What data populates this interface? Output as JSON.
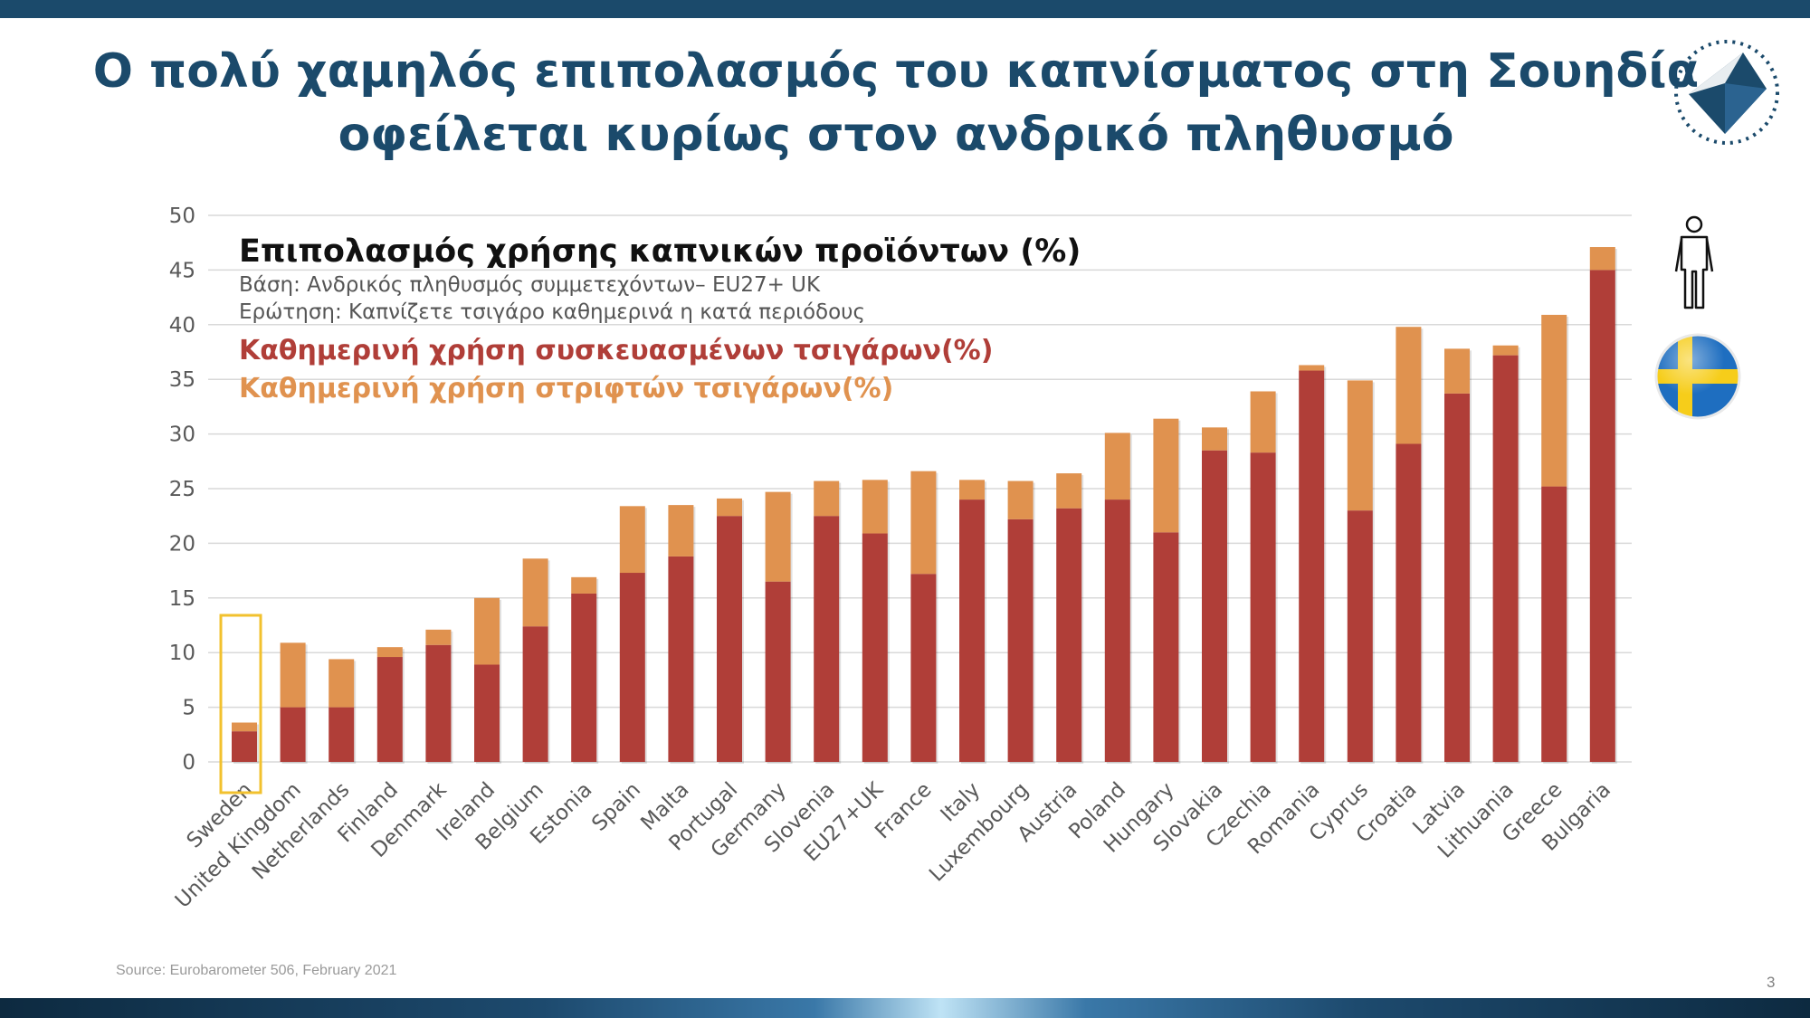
{
  "slide": {
    "title_line1": "Ο πολύ χαμηλός επιπολασμός του καπνίσματος στη Σουηδία",
    "title_line2": "οφείλεται κυρίως στον ανδρικό πληθυσμό",
    "source": "Source: Eurobarometer 506, February 2021",
    "page_number": "3",
    "icons": [
      "logo-icon",
      "person-icon",
      "sweden-flag-icon"
    ]
  },
  "colors": {
    "header_bar": "#1b4a6b",
    "title": "#1b4a6b",
    "daily_packaged": "#b03e38",
    "daily_rolled": "#e0924f",
    "highlight": "#f2c12e"
  },
  "chart_data": {
    "type": "bar",
    "stacked": true,
    "title": "Επιπολασμός χρήσης καπνικών προϊόντων (%)",
    "subtitle_base": "Βάση: Ανδρικός πληθυσμός συμμετεχόντων– EU27+ UK",
    "subtitle_question": "Ερώτηση: Καπνίζετε τσιγάρο καθημερινά η κατά περιόδους",
    "ylim": [
      0,
      50
    ],
    "yticks": [
      0,
      5,
      10,
      15,
      20,
      25,
      30,
      35,
      40,
      45,
      50
    ],
    "grid": true,
    "highlighted_category": "Sweden",
    "categories": [
      "Sweden",
      "United Kingdom",
      "Netherlands",
      "Finland",
      "Denmark",
      "Ireland",
      "Belgium",
      "Estonia",
      "Spain",
      "Malta",
      "Portugal",
      "Germany",
      "Slovenia",
      "EU27+UK",
      "France",
      "Italy",
      "Luxembourg",
      "Austria",
      "Poland",
      "Hungary",
      "Slovakia",
      "Czechia",
      "Romania",
      "Cyprus",
      "Croatia",
      "Latvia",
      "Lithuania",
      "Greece",
      "Bulgaria"
    ],
    "series": [
      {
        "name": "Καθημερινή χρήση συσκευασμένων τσιγάρων(%)",
        "color": "#b03e38",
        "values": [
          2.8,
          5.0,
          5.0,
          9.6,
          10.7,
          8.9,
          12.4,
          15.4,
          17.3,
          18.8,
          22.5,
          16.5,
          22.5,
          20.9,
          17.2,
          24.0,
          22.2,
          23.2,
          24.0,
          21.0,
          28.5,
          28.3,
          35.8,
          23.0,
          29.1,
          33.7,
          37.2,
          25.2,
          45.0
        ]
      },
      {
        "name": "Καθημερινή χρήση στριφτών τσιγάρων(%)",
        "color": "#e0924f",
        "values": [
          0.8,
          5.9,
          4.4,
          0.9,
          1.4,
          6.1,
          6.2,
          1.5,
          6.1,
          4.7,
          1.6,
          8.2,
          3.2,
          4.9,
          9.4,
          1.8,
          3.5,
          3.2,
          6.1,
          10.4,
          2.1,
          5.6,
          0.5,
          11.9,
          10.7,
          4.1,
          0.9,
          15.7,
          2.1
        ]
      }
    ]
  }
}
